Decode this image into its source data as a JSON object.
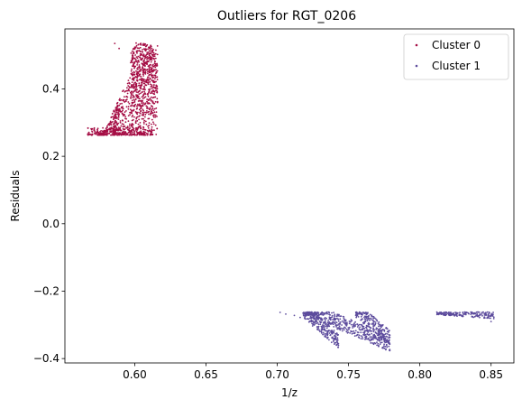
{
  "chart_data": {
    "type": "scatter",
    "title": "Outliers for RGT_0206",
    "xlabel": "1/z",
    "ylabel": "Residuals",
    "xlim": [
      0.551,
      0.866
    ],
    "ylim": [
      -0.413,
      0.578
    ],
    "xticks": [
      0.6,
      0.65,
      0.7,
      0.75,
      0.8,
      0.85
    ],
    "xtick_labels": [
      "0.60",
      "0.65",
      "0.70",
      "0.75",
      "0.80",
      "0.85"
    ],
    "yticks": [
      -0.4,
      -0.2,
      0.0,
      0.2,
      0.4
    ],
    "ytick_labels": [
      "−0.4",
      "−0.2",
      "0.0",
      "0.2",
      "0.4"
    ],
    "grid": false,
    "legend_position": "top-right",
    "series": [
      {
        "name": "Cluster 0",
        "color": "#a50e45",
        "regions": [
          {
            "shape": "base",
            "x": [
              0.567,
              0.613
            ],
            "y": [
              0.263,
              0.285
            ]
          },
          {
            "shape": "ramp",
            "x": [
              0.576,
              0.589
            ],
            "y": [
              0.265,
              0.39
            ]
          },
          {
            "shape": "wedge",
            "x": [
              0.585,
              0.616
            ],
            "y": [
              0.265,
              0.535
            ]
          },
          {
            "shape": "dome",
            "x": [
              0.597,
              0.616
            ],
            "y": [
              0.3,
              0.537
            ]
          }
        ],
        "points": [
          {
            "x": 0.567,
            "y": 0.265
          },
          {
            "x": 0.572,
            "y": 0.27
          },
          {
            "x": 0.586,
            "y": 0.535
          },
          {
            "x": 0.589,
            "y": 0.52
          },
          {
            "x": 0.601,
            "y": 0.536
          },
          {
            "x": 0.606,
            "y": 0.534
          },
          {
            "x": 0.612,
            "y": 0.52
          },
          {
            "x": 0.615,
            "y": 0.265
          }
        ]
      },
      {
        "name": "Cluster 1",
        "color": "#5d4c9d",
        "regions": [
          {
            "shape": "band",
            "x": [
              0.718,
              0.743
            ],
            "y": [
              -0.265,
              -0.357
            ]
          },
          {
            "shape": "band",
            "x": [
              0.724,
              0.779
            ],
            "y": [
              -0.265,
              -0.366
            ]
          },
          {
            "shape": "band",
            "x": [
              0.755,
              0.779
            ],
            "y": [
              -0.265,
              -0.345
            ]
          },
          {
            "shape": "strip",
            "x": [
              0.812,
              0.852
            ],
            "y": [
              -0.262,
              -0.282
            ]
          }
        ],
        "points": [
          {
            "x": 0.702,
            "y": -0.263
          },
          {
            "x": 0.706,
            "y": -0.268
          },
          {
            "x": 0.712,
            "y": -0.272
          },
          {
            "x": 0.716,
            "y": -0.278
          },
          {
            "x": 0.742,
            "y": -0.358
          },
          {
            "x": 0.777,
            "y": -0.366
          },
          {
            "x": 0.85,
            "y": -0.29
          },
          {
            "x": 0.812,
            "y": -0.262
          }
        ]
      }
    ]
  }
}
